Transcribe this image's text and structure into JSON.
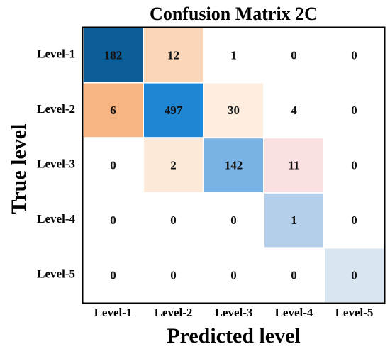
{
  "chart_data": {
    "type": "heatmap",
    "title": "Confusion Matrix 2C",
    "xlabel": "Predicted level",
    "ylabel": "True level",
    "x_categories": [
      "Level-1",
      "Level-2",
      "Level-3",
      "Level-4",
      "Level-5"
    ],
    "y_categories": [
      "Level-1",
      "Level-2",
      "Level-3",
      "Level-4",
      "Level-5"
    ],
    "matrix": [
      [
        182,
        12,
        1,
        0,
        0
      ],
      [
        6,
        497,
        30,
        4,
        0
      ],
      [
        0,
        2,
        142,
        11,
        0
      ],
      [
        0,
        0,
        0,
        1,
        0
      ],
      [
        0,
        0,
        0,
        0,
        0
      ]
    ],
    "cell_colors": [
      [
        "#0b5d97",
        "#fbd6b9",
        "#ffffff",
        "#ffffff",
        "#ffffff"
      ],
      [
        "#f7b584",
        "#1f86d3",
        "#fdeee0",
        "#ffffff",
        "#ffffff"
      ],
      [
        "#ffffff",
        "#fde9d8",
        "#79b2e4",
        "#fbe0e1",
        "#ffffff"
      ],
      [
        "#ffffff",
        "#ffffff",
        "#ffffff",
        "#b3cfe9",
        "#ffffff"
      ],
      [
        "#ffffff",
        "#ffffff",
        "#ffffff",
        "#ffffff",
        "#d9e6f2"
      ]
    ],
    "grid": false
  }
}
